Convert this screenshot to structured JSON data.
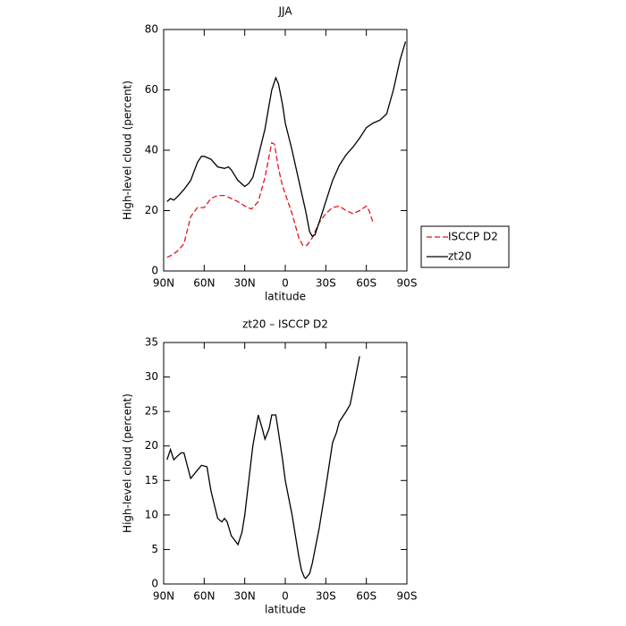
{
  "chart_data": [
    {
      "type": "line",
      "title": "JJA",
      "x_label": "latitude",
      "y_label": "High-level cloud (percent)",
      "xlim": [
        90,
        -90
      ],
      "xticks": [
        {
          "value": 90,
          "label": "90N"
        },
        {
          "value": 60,
          "label": "60N"
        },
        {
          "value": 30,
          "label": "30N"
        },
        0,
        {
          "value": -30,
          "label": "30S"
        },
        {
          "value": -60,
          "label": "60S"
        },
        {
          "value": -90,
          "label": "90S"
        }
      ],
      "ylim": [
        0,
        80
      ],
      "yticks": [
        0,
        20,
        40,
        60,
        80
      ],
      "legend": "right",
      "series": [
        {
          "name": "ISCCP D2",
          "color": "#e8141c",
          "style": "dashed",
          "x": [
            87.5,
            85,
            80,
            75,
            70,
            65,
            60,
            55,
            50,
            45,
            40,
            35,
            30,
            25,
            20,
            15,
            12,
            10,
            8,
            5,
            2,
            0,
            -5,
            -10,
            -13,
            -16,
            -20,
            -25,
            -30,
            -35,
            -40,
            -45,
            -50,
            -55,
            -60,
            -62,
            -65
          ],
          "values": [
            4.5,
            5,
            6.5,
            9,
            18,
            21,
            21,
            24,
            25,
            25,
            24,
            23,
            21.5,
            20.5,
            23,
            31,
            38,
            42.5,
            42,
            34,
            28,
            25.5,
            19,
            11,
            8.5,
            8.5,
            11,
            16,
            19,
            21,
            21.5,
            20,
            19,
            20,
            21.5,
            20,
            16
          ]
        },
        {
          "name": "zt20",
          "color": "#000000",
          "style": "solid",
          "x": [
            87.5,
            85,
            82.5,
            80,
            75,
            70,
            65,
            62,
            60,
            55,
            50,
            45,
            42,
            40,
            35,
            30,
            27,
            24,
            20,
            15,
            12,
            10,
            7,
            5,
            2,
            0,
            -5,
            -10,
            -15,
            -18,
            -20,
            -22,
            -25,
            -30,
            -35,
            -40,
            -45,
            -50,
            -55,
            -60,
            -65,
            -70,
            -75,
            -80,
            -85,
            -89
          ],
          "values": [
            23,
            24,
            23.5,
            24.5,
            27,
            30,
            36,
            38,
            38,
            37,
            34.5,
            34,
            34.5,
            33.5,
            30,
            28,
            29,
            31,
            38,
            47,
            55,
            60,
            64,
            62,
            55,
            49,
            40,
            30,
            20,
            13,
            11.5,
            12,
            16,
            23,
            30,
            35,
            38.5,
            41,
            44,
            47.5,
            49,
            50,
            52,
            60,
            70,
            76
          ]
        }
      ]
    },
    {
      "type": "line",
      "title": "zt20 – ISCCP D2",
      "x_label": "latitude",
      "y_label": "High-level cloud (percent)",
      "xlim": [
        90,
        -90
      ],
      "xticks": [
        {
          "value": 90,
          "label": "90N"
        },
        {
          "value": 60,
          "label": "60N"
        },
        {
          "value": 30,
          "label": "30N"
        },
        0,
        {
          "value": -30,
          "label": "30S"
        },
        {
          "value": -60,
          "label": "60S"
        },
        {
          "value": -90,
          "label": "90S"
        }
      ],
      "ylim": [
        0,
        35
      ],
      "yticks": [
        0,
        5,
        10,
        15,
        20,
        25,
        30,
        35
      ],
      "series": [
        {
          "color": "#000000",
          "style": "solid",
          "x": [
            87.5,
            85,
            82.5,
            80,
            77,
            75,
            70,
            65,
            62,
            58,
            55,
            50,
            47,
            45,
            43,
            40,
            35,
            32,
            30,
            27,
            24,
            20,
            17,
            15,
            12,
            10,
            7,
            5,
            2,
            0,
            -5,
            -10,
            -12,
            -14,
            -15,
            -18,
            -20,
            -25,
            -30,
            -35,
            -38,
            -40,
            -45,
            -48,
            -50,
            -52,
            -55
          ],
          "values": [
            18,
            19.5,
            18,
            18.5,
            19,
            19,
            15.3,
            16.5,
            17.2,
            17,
            13.5,
            9.5,
            9,
            9.5,
            9,
            7,
            5.7,
            7.5,
            10,
            15,
            20,
            24.5,
            22.5,
            21,
            22.5,
            24.5,
            24.5,
            22,
            18,
            15,
            10,
            4,
            2,
            1,
            0.8,
            1.5,
            3,
            8,
            14,
            20.5,
            22,
            23.5,
            25,
            26,
            28,
            30,
            33
          ]
        }
      ]
    }
  ]
}
